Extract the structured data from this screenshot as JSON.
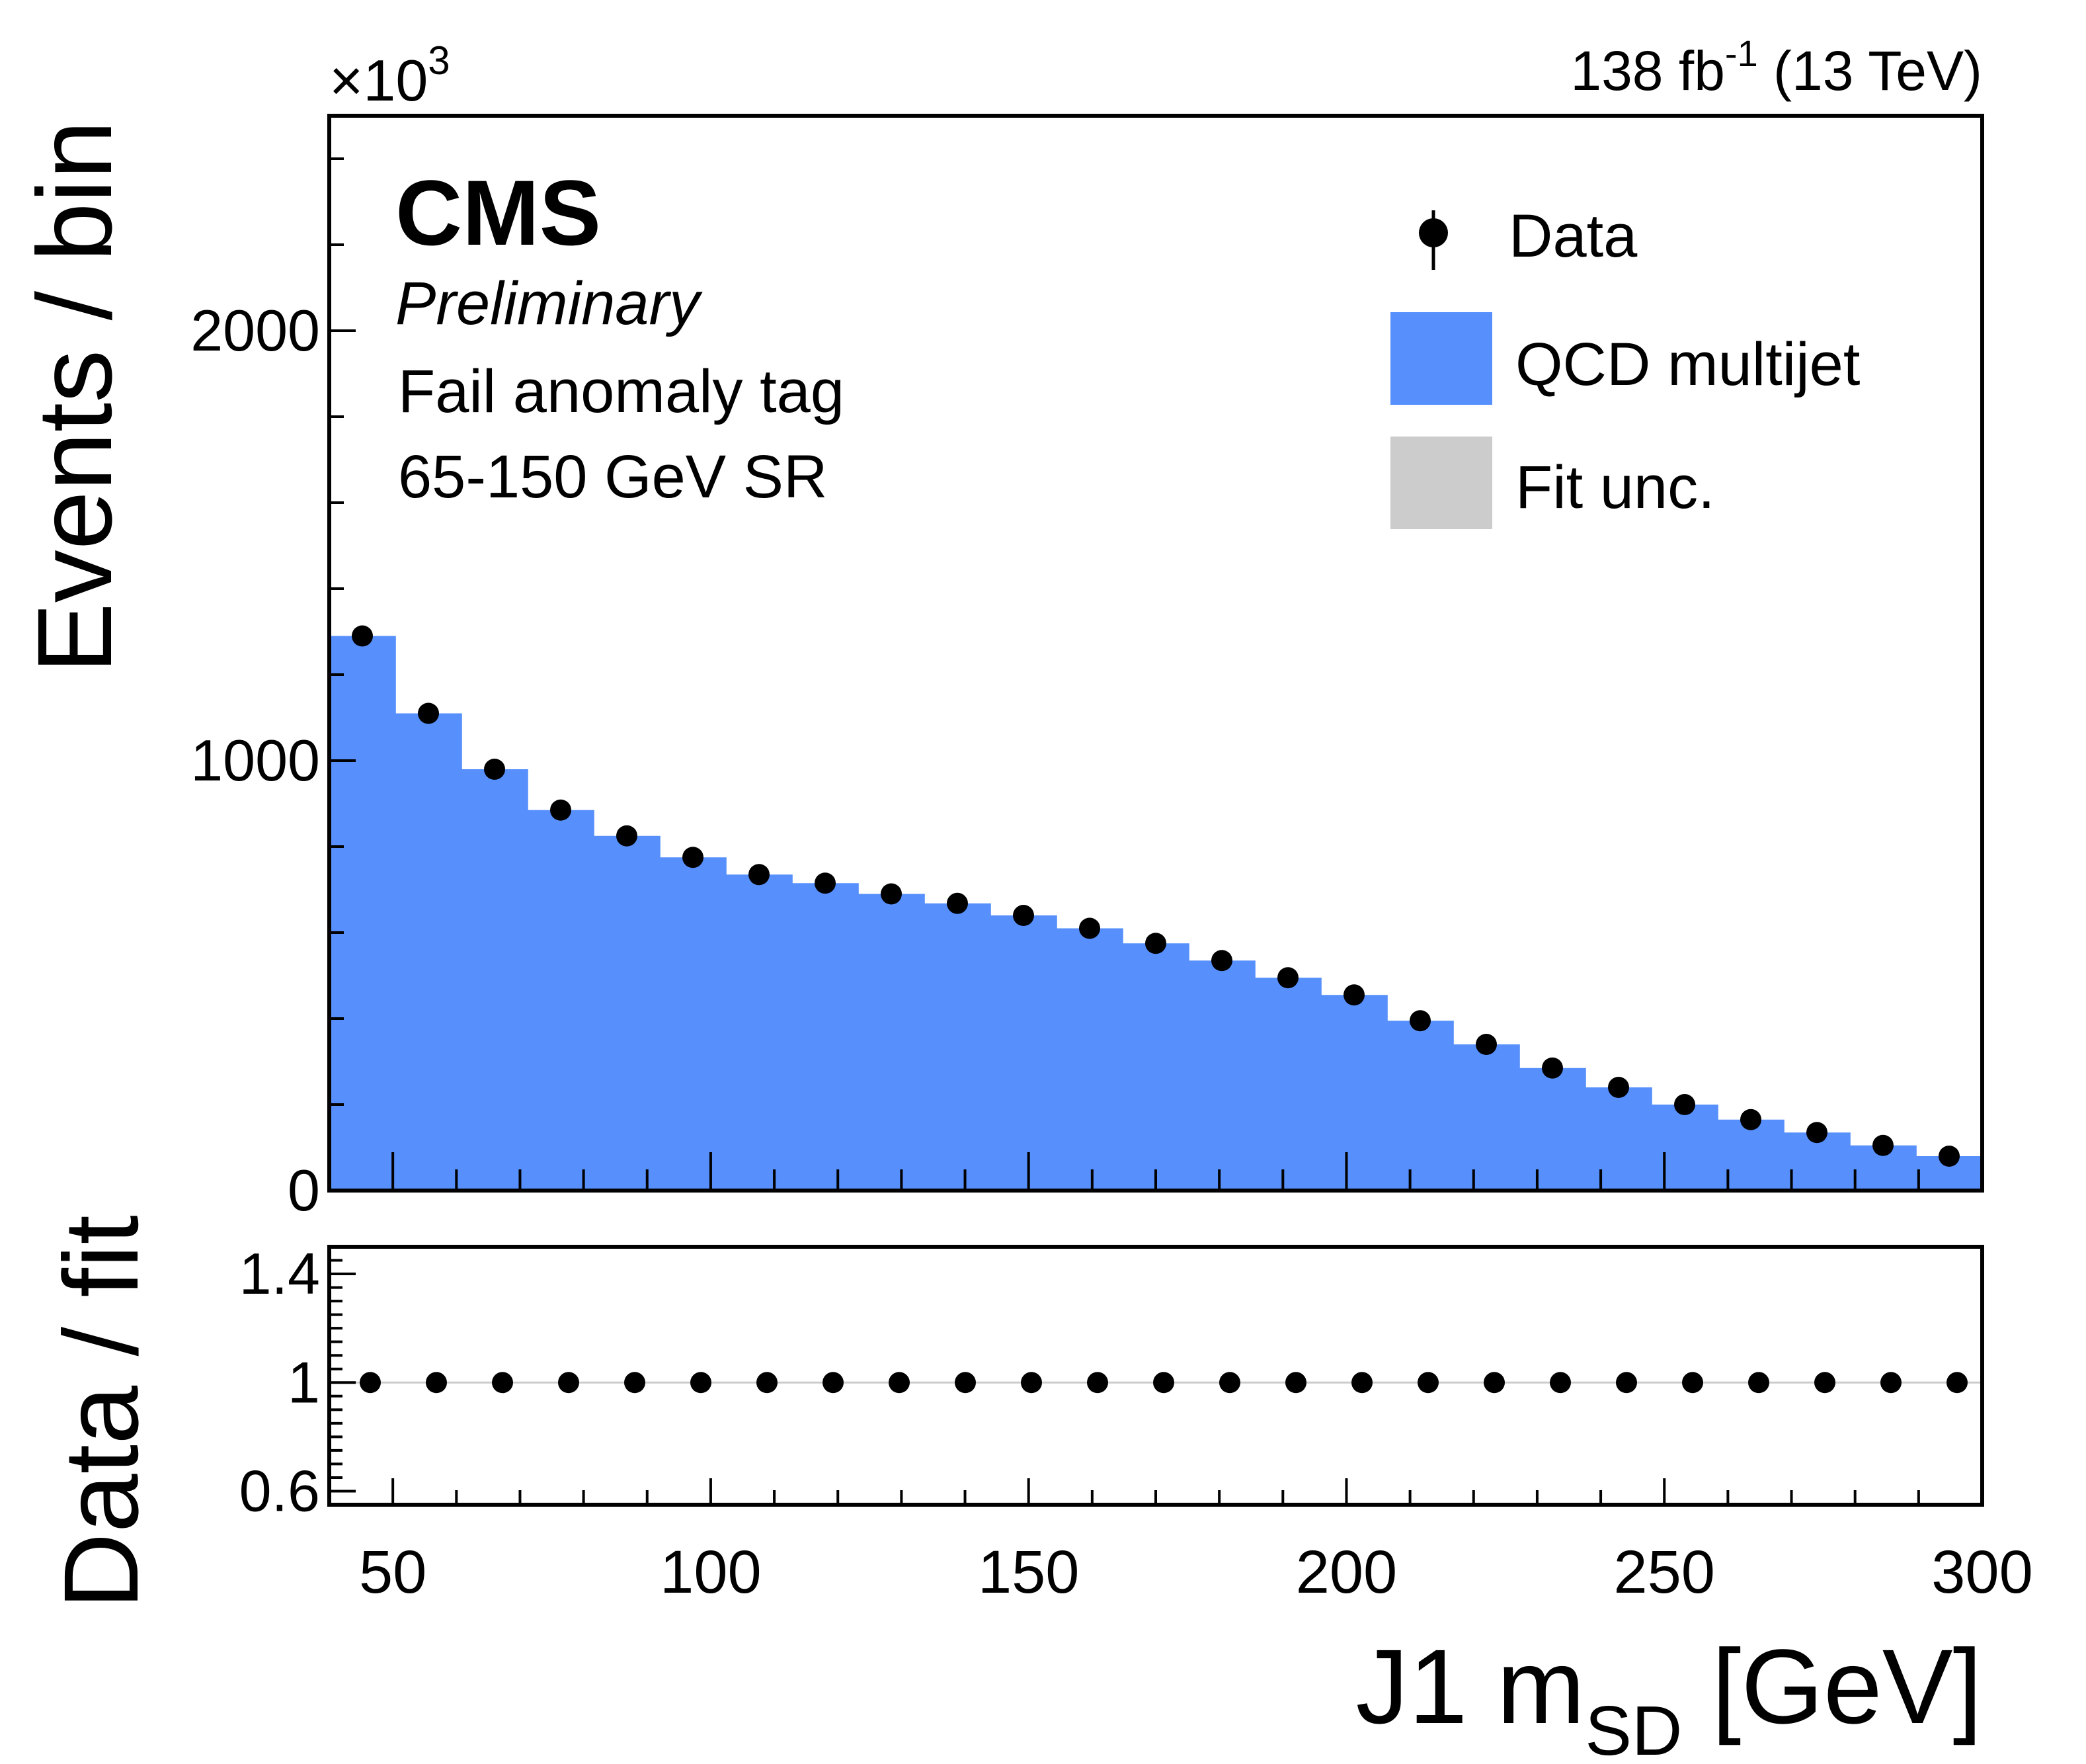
{
  "header": {
    "exponent_prefix": "×10",
    "exponent_power": "3",
    "lumi_value": "138 fb",
    "lumi_power": "-1",
    "lumi_energy": " (13 TeV)"
  },
  "labels": {
    "experiment": "CMS",
    "status": "Preliminary",
    "selection": "Fail anomaly tag",
    "region": "65-150 GeV SR"
  },
  "legend": {
    "data": "Data",
    "qcd": "QCD multijet",
    "unc": "Fit unc."
  },
  "axes": {
    "ylabel_main": "Events / bin",
    "ylabel_ratio": "Data / fit",
    "xlabel_main": "J1 m",
    "xlabel_sub": "SD",
    "xlabel_unit": " [GeV]"
  },
  "colors": {
    "qcd": "#5790fc",
    "unc": "#cccccc",
    "data": "#000000",
    "ratio_line": "#cccccc"
  },
  "chart_data": [
    {
      "type": "bar",
      "panel": "main",
      "xlim": [
        40,
        300
      ],
      "ylim": [
        0,
        2500
      ],
      "y_scale_note": "×10^3",
      "xticks": [
        50,
        100,
        150,
        200,
        250,
        300
      ],
      "yticks": [
        0,
        1000,
        2000
      ],
      "ytick_labels": [
        "0",
        "1000",
        "2000"
      ],
      "bin_edges": [
        40,
        50.4,
        60.8,
        71.2,
        81.6,
        92,
        102.4,
        112.8,
        123.2,
        133.6,
        144,
        154.4,
        164.8,
        175.2,
        185.6,
        196,
        206.4,
        216.8,
        227.2,
        237.6,
        248,
        258.4,
        268.8,
        279.2,
        289.6,
        300
      ],
      "series": [
        {
          "name": "QCD multijet",
          "kind": "histogram",
          "values": [
            1290,
            1110,
            980,
            885,
            825,
            775,
            735,
            715,
            690,
            668,
            640,
            610,
            575,
            535,
            495,
            455,
            395,
            340,
            285,
            240,
            200,
            165,
            135,
            105,
            80
          ]
        },
        {
          "name": "Data",
          "kind": "points",
          "x": [
            45.2,
            55.6,
            66,
            76.4,
            86.8,
            97.2,
            107.6,
            118,
            128.4,
            138.8,
            149.2,
            159.6,
            170,
            180.4,
            190.8,
            201.2,
            211.6,
            222,
            232.4,
            242.8,
            253.2,
            263.6,
            274,
            284.4,
            294.8
          ],
          "values": [
            1290,
            1110,
            980,
            885,
            825,
            775,
            735,
            715,
            690,
            668,
            640,
            610,
            575,
            535,
            495,
            455,
            395,
            340,
            285,
            240,
            200,
            165,
            135,
            105,
            80
          ]
        }
      ]
    },
    {
      "type": "scatter",
      "panel": "ratio",
      "xlim": [
        40,
        300
      ],
      "ylim": [
        0.55,
        1.5
      ],
      "xticks": [
        50,
        100,
        150,
        200,
        250,
        300
      ],
      "xtick_labels": [
        "50",
        "100",
        "150",
        "200",
        "250",
        "300"
      ],
      "yticks": [
        0.6,
        1,
        1.4
      ],
      "ytick_labels": [
        "0.6",
        "1",
        "1.4"
      ],
      "reference_line": 1,
      "series": [
        {
          "name": "Data",
          "x": [
            45.2,
            55.6,
            66,
            76.4,
            86.8,
            97.2,
            107.6,
            118,
            128.4,
            138.8,
            149.2,
            159.6,
            170,
            180.4,
            190.8,
            201.2,
            211.6,
            222,
            232.4,
            242.8,
            253.2,
            263.6,
            274,
            284.4,
            294.8
          ],
          "values": [
            1,
            1,
            1,
            1,
            1,
            1,
            1,
            1,
            1,
            1,
            1,
            1,
            1,
            1,
            1,
            1,
            1,
            1,
            1,
            1,
            1,
            1,
            1,
            1,
            1
          ]
        }
      ]
    }
  ]
}
